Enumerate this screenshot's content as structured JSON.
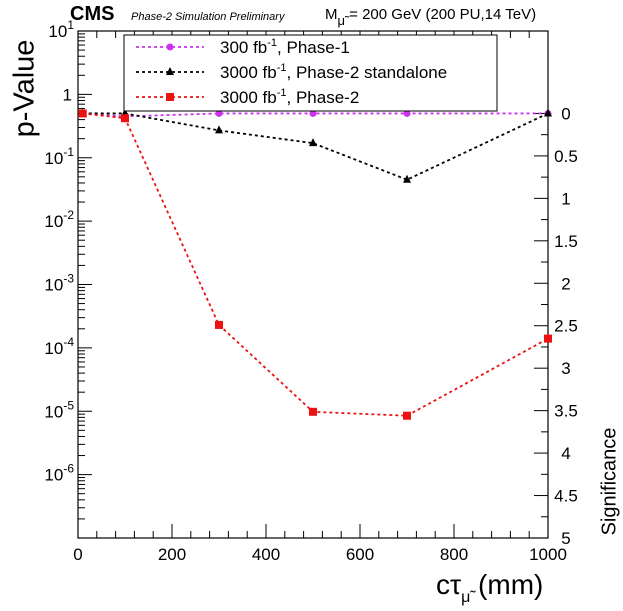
{
  "header": {
    "experiment": "CMS",
    "status": "Phase-2 Simulation Preliminary",
    "mass_label": "M",
    "mass_sub": "μ̃",
    "mass_value": " = 200 GeV (200 PU,14 TeV)"
  },
  "axis_titles": {
    "y": "p-Value",
    "y2": "Significance",
    "x_main": "cτ",
    "x_sub": "μ̃",
    "x_unit": " (mm)"
  },
  "chart_data": {
    "type": "line",
    "xlim": [
      0,
      1000
    ],
    "ylim": [
      1e-07,
      10
    ],
    "yscale": "log",
    "x_ticks": [
      0,
      200,
      400,
      600,
      800,
      1000
    ],
    "y_tick_exponents": [
      -6,
      -5,
      -4,
      -3,
      -2,
      -1,
      0,
      1
    ],
    "y_tick_labels": {
      "-6": "10",
      "-5": "10",
      "-4": "10",
      "-3": "10",
      "-2": "10",
      "-1": "10",
      "0": "1",
      "1": "10"
    },
    "significance_ticks": [
      "0",
      "0.5",
      "1",
      "1.5",
      "2",
      "2.5",
      "3",
      "3.5",
      "4",
      "4.5",
      "5"
    ],
    "significance_values": [
      0,
      0.5,
      1,
      1.5,
      2,
      2.5,
      3,
      3.5,
      4,
      4.5,
      5
    ],
    "legend_placement": "top-center",
    "grid": false,
    "series": [
      {
        "name": "300 fb",
        "name_sup": "-1",
        "name_rest": ", Phase-1",
        "color": "#cc33ee",
        "marker": "circle",
        "x": [
          10,
          100,
          300,
          500,
          700,
          1000
        ],
        "y": [
          0.5,
          0.45,
          0.5,
          0.5,
          0.5,
          0.5
        ]
      },
      {
        "name": "3000 fb",
        "name_sup": "-1",
        "name_rest": ", Phase-2 standalone",
        "color": "#000000",
        "marker": "triangle",
        "x": [
          10,
          100,
          300,
          500,
          700,
          1000
        ],
        "y": [
          0.5,
          0.5,
          0.27,
          0.17,
          0.045,
          0.5
        ]
      },
      {
        "name": "3000 fb",
        "name_sup": "-1",
        "name_rest": ", Phase-2",
        "color": "#ee1111",
        "marker": "square",
        "x": [
          10,
          100,
          300,
          500,
          700,
          1000
        ],
        "y": [
          0.5,
          0.42,
          0.00023,
          9.8e-06,
          8.5e-06,
          0.00014
        ]
      }
    ]
  }
}
